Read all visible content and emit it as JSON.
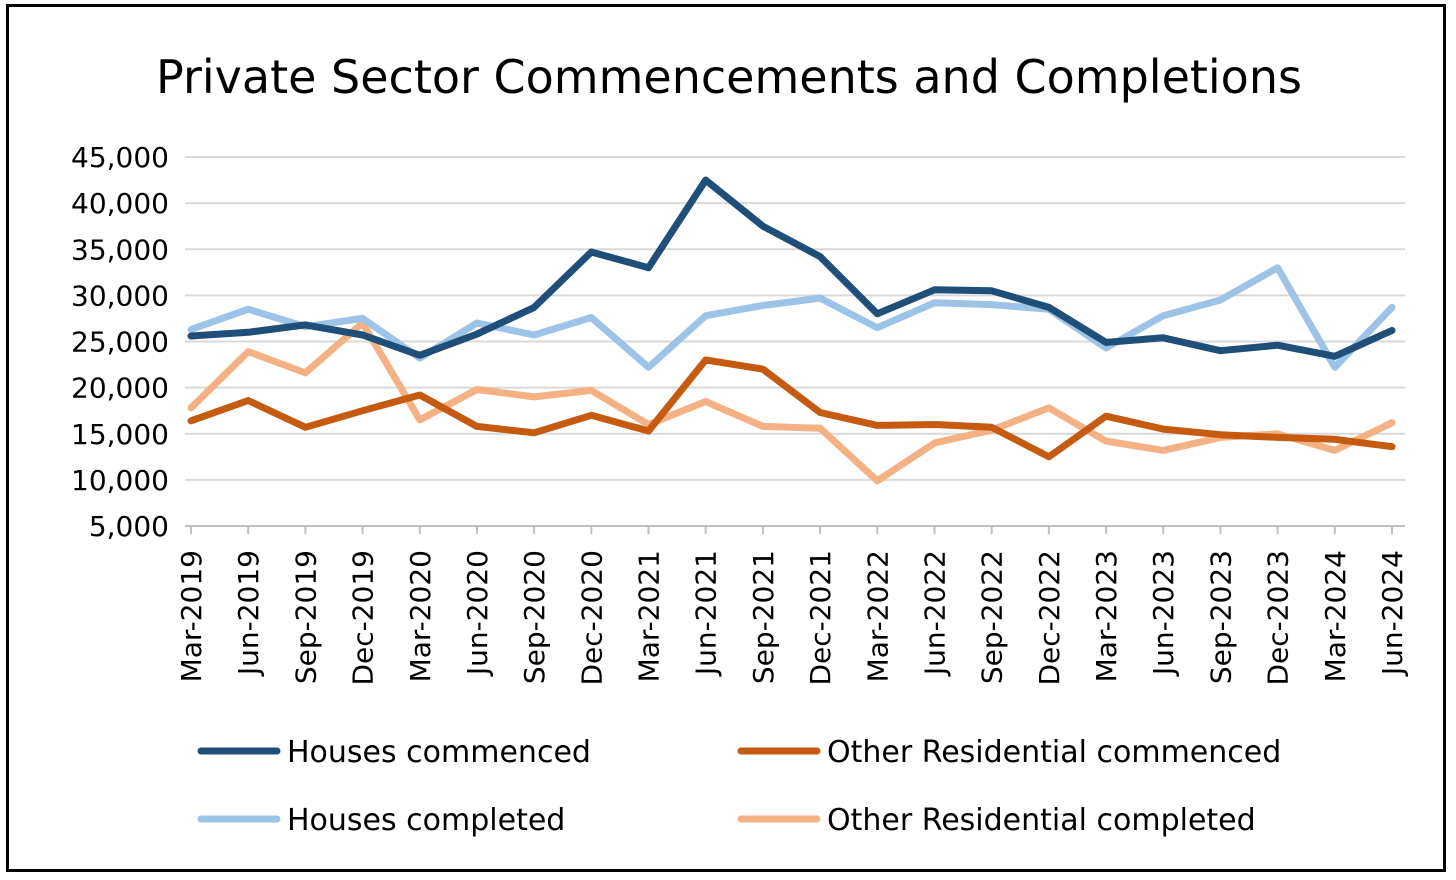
{
  "chart_data": {
    "type": "line",
    "title": "Private Sector Commencements and Completions",
    "xlabel": "",
    "ylabel": "",
    "ylim": [
      5000,
      45000
    ],
    "yticks": [
      5000,
      10000,
      15000,
      20000,
      25000,
      30000,
      35000,
      40000,
      45000
    ],
    "ytick_labels": [
      "5,000",
      "10,000",
      "15,000",
      "20,000",
      "25,000",
      "30,000",
      "35,000",
      "40,000",
      "45,000"
    ],
    "grid": true,
    "legend_position": "bottom",
    "categories": [
      "Mar-2019",
      "Jun-2019",
      "Sep-2019",
      "Dec-2019",
      "Mar-2020",
      "Jun-2020",
      "Sep-2020",
      "Dec-2020",
      "Mar-2021",
      "Jun-2021",
      "Sep-2021",
      "Dec-2021",
      "Mar-2022",
      "Jun-2022",
      "Sep-2022",
      "Dec-2022",
      "Mar-2023",
      "Jun-2023",
      "Sep-2023",
      "Dec-2023",
      "Mar-2024",
      "Jun-2024"
    ],
    "series": [
      {
        "name": "Houses commenced",
        "color": "#1f4e79",
        "values": [
          25600,
          26000,
          26800,
          25700,
          23500,
          25800,
          28700,
          34700,
          33000,
          42500,
          37500,
          34200,
          28000,
          30600,
          30500,
          28700,
          24900,
          25400,
          24000,
          24600,
          23400,
          26200
        ]
      },
      {
        "name": "Other Residential commenced",
        "color": "#c55a11",
        "values": [
          16400,
          18600,
          15700,
          17500,
          19200,
          15800,
          15100,
          17000,
          15300,
          23000,
          22000,
          17300,
          15900,
          16000,
          15700,
          12500,
          16900,
          15500,
          14900,
          14600,
          14400,
          13600
        ]
      },
      {
        "name": "Houses completed",
        "color": "#9dc3e6",
        "values": [
          26300,
          28500,
          26600,
          27500,
          23200,
          27000,
          25700,
          27600,
          22200,
          27800,
          28900,
          29700,
          26500,
          29200,
          29000,
          28500,
          24300,
          27800,
          29500,
          33000,
          22200,
          28700
        ]
      },
      {
        "name": "Other Residential completed",
        "color": "#f4b183",
        "values": [
          17800,
          23900,
          21600,
          27000,
          16500,
          19800,
          19000,
          19700,
          16000,
          18500,
          15800,
          15600,
          9900,
          14000,
          15400,
          17800,
          14200,
          13200,
          14600,
          15000,
          13200,
          16200
        ]
      }
    ]
  }
}
